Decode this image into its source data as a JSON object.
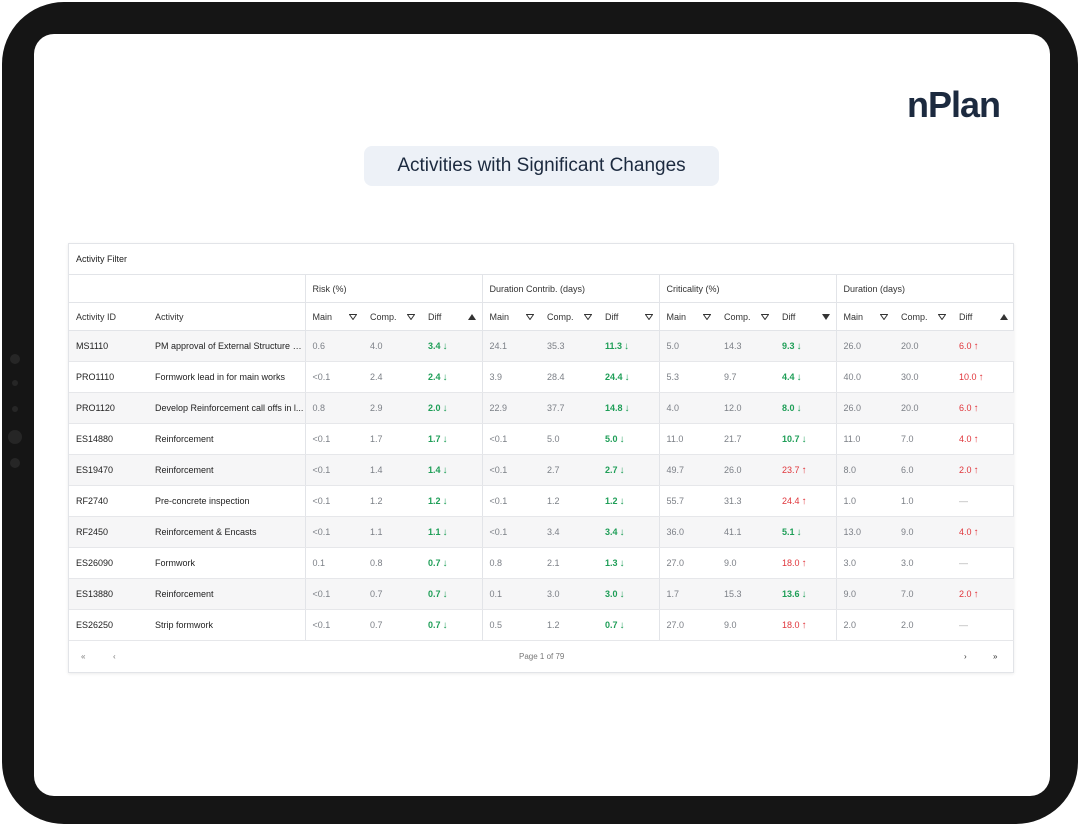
{
  "brand": {
    "name": "nPlan"
  },
  "title": "Activities with Significant Changes",
  "activity_filter": "Activity Filter",
  "groups": [
    "Risk (%)",
    "Duration Contrib. (days)",
    "Criticality (%)",
    "Duration (days)"
  ],
  "columns": {
    "activity_id": "Activity ID",
    "activity": "Activity",
    "main": "Main",
    "comp": "Comp.",
    "diff": "Diff"
  },
  "rows": [
    {
      "id": "MS1110",
      "activity": "PM approval of External Structure - ...",
      "risk": [
        "0.6",
        "4.0",
        "3.4",
        "down"
      ],
      "dur_contrib": [
        "24.1",
        "35.3",
        "11.3",
        "down"
      ],
      "criticality": [
        "5.0",
        "14.3",
        "9.3",
        "down"
      ],
      "duration": [
        "26.0",
        "20.0",
        "6.0",
        "up"
      ]
    },
    {
      "id": "PRO1110",
      "activity": "Formwork lead in for main works",
      "risk": [
        "<0.1",
        "2.4",
        "2.4",
        "down"
      ],
      "dur_contrib": [
        "3.9",
        "28.4",
        "24.4",
        "down"
      ],
      "criticality": [
        "5.3",
        "9.7",
        "4.4",
        "down"
      ],
      "duration": [
        "40.0",
        "30.0",
        "10.0",
        "up"
      ]
    },
    {
      "id": "PRO1120",
      "activity": "Develop Reinforcement call offs in l...",
      "risk": [
        "0.8",
        "2.9",
        "2.0",
        "down"
      ],
      "dur_contrib": [
        "22.9",
        "37.7",
        "14.8",
        "down"
      ],
      "criticality": [
        "4.0",
        "12.0",
        "8.0",
        "down"
      ],
      "duration": [
        "26.0",
        "20.0",
        "6.0",
        "up"
      ]
    },
    {
      "id": "ES14880",
      "activity": "Reinforcement",
      "risk": [
        "<0.1",
        "1.7",
        "1.7",
        "down"
      ],
      "dur_contrib": [
        "<0.1",
        "5.0",
        "5.0",
        "down"
      ],
      "criticality": [
        "11.0",
        "21.7",
        "10.7",
        "down"
      ],
      "duration": [
        "11.0",
        "7.0",
        "4.0",
        "up"
      ]
    },
    {
      "id": "ES19470",
      "activity": "Reinforcement",
      "risk": [
        "<0.1",
        "1.4",
        "1.4",
        "down"
      ],
      "dur_contrib": [
        "<0.1",
        "2.7",
        "2.7",
        "down"
      ],
      "criticality": [
        "49.7",
        "26.0",
        "23.7",
        "up"
      ],
      "duration": [
        "8.0",
        "6.0",
        "2.0",
        "up"
      ]
    },
    {
      "id": "RF2740",
      "activity": "Pre-concrete inspection",
      "risk": [
        "<0.1",
        "1.2",
        "1.2",
        "down"
      ],
      "dur_contrib": [
        "<0.1",
        "1.2",
        "1.2",
        "down"
      ],
      "criticality": [
        "55.7",
        "31.3",
        "24.4",
        "up"
      ],
      "duration": [
        "1.0",
        "1.0",
        "—",
        "none"
      ]
    },
    {
      "id": "RF2450",
      "activity": "Reinforcement & Encasts",
      "risk": [
        "<0.1",
        "1.1",
        "1.1",
        "down"
      ],
      "dur_contrib": [
        "<0.1",
        "3.4",
        "3.4",
        "down"
      ],
      "criticality": [
        "36.0",
        "41.1",
        "5.1",
        "down"
      ],
      "duration": [
        "13.0",
        "9.0",
        "4.0",
        "up"
      ]
    },
    {
      "id": "ES26090",
      "activity": "Formwork",
      "risk": [
        "0.1",
        "0.8",
        "0.7",
        "down"
      ],
      "dur_contrib": [
        "0.8",
        "2.1",
        "1.3",
        "down"
      ],
      "criticality": [
        "27.0",
        "9.0",
        "18.0",
        "up"
      ],
      "duration": [
        "3.0",
        "3.0",
        "—",
        "none"
      ]
    },
    {
      "id": "ES13880",
      "activity": "Reinforcement",
      "risk": [
        "<0.1",
        "0.7",
        "0.7",
        "down"
      ],
      "dur_contrib": [
        "0.1",
        "3.0",
        "3.0",
        "down"
      ],
      "criticality": [
        "1.7",
        "15.3",
        "13.6",
        "down"
      ],
      "duration": [
        "9.0",
        "7.0",
        "2.0",
        "up"
      ]
    },
    {
      "id": "ES26250",
      "activity": "Strip formwork",
      "risk": [
        "<0.1",
        "0.7",
        "0.7",
        "down"
      ],
      "dur_contrib": [
        "0.5",
        "1.2",
        "0.7",
        "down"
      ],
      "criticality": [
        "27.0",
        "9.0",
        "18.0",
        "up"
      ],
      "duration": [
        "2.0",
        "2.0",
        "—",
        "none"
      ]
    }
  ],
  "pager": {
    "first": "«",
    "prev": "‹",
    "label": "Page 1 of 79",
    "next": "›",
    "last": "»"
  },
  "colors": {
    "good": "#1e9e57",
    "bad": "#e0353b",
    "brand": "#1c2a3f"
  }
}
